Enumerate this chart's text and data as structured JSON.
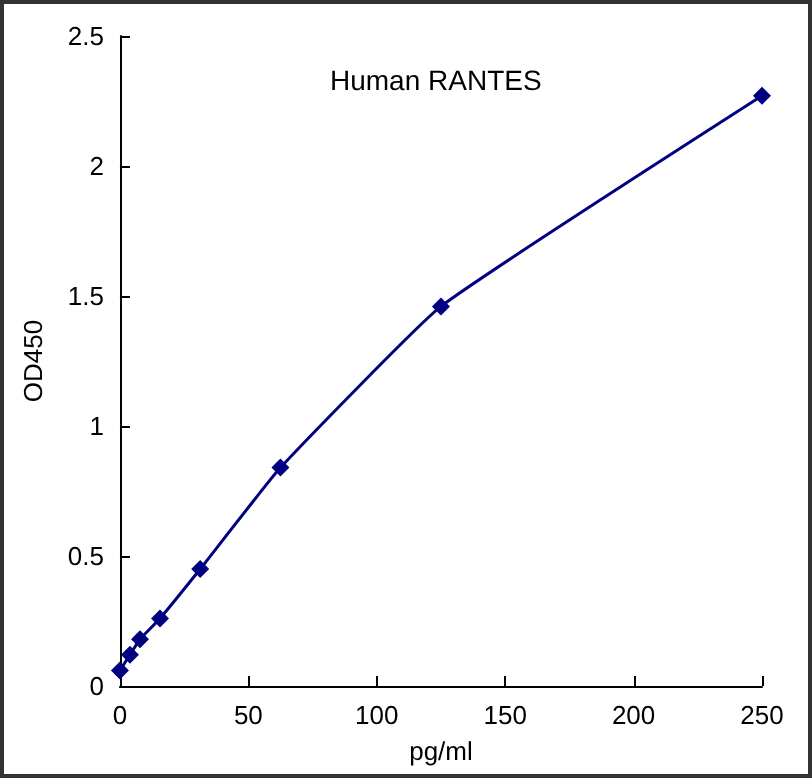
{
  "chart_data": {
    "type": "line",
    "title": "Human RANTES",
    "xlabel": "pg/ml",
    "ylabel": "OD450",
    "x": [
      0,
      3.9,
      7.8,
      15.6,
      31.25,
      62.5,
      125,
      250
    ],
    "series": [
      {
        "color": "#000080",
        "values": [
          0.06,
          0.12,
          0.18,
          0.26,
          0.45,
          0.84,
          1.46,
          2.27
        ]
      }
    ],
    "xlim": [
      0,
      250
    ],
    "xticks": [
      0,
      50,
      100,
      150,
      200,
      250
    ],
    "ylim": [
      0,
      2.5
    ],
    "yticks": [
      0,
      0.5,
      1,
      1.5,
      2,
      2.5
    ],
    "grid": false,
    "marker": "diamond",
    "line_style": "solid"
  }
}
